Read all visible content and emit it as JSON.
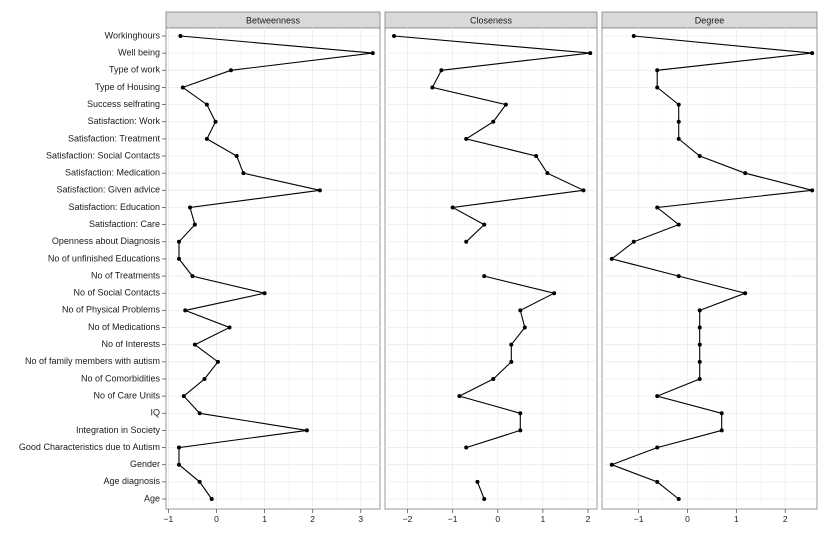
{
  "chart_data": {
    "type": "line",
    "orientation": "horizontal",
    "grid": true,
    "categories": [
      "Workinghours",
      "Well being",
      "Type of work",
      "Type of Housing",
      "Success selfrating",
      "Satisfaction: Work",
      "Satisfaction: Treatment",
      "Satisfaction: Social Contacts",
      "Satisfaction: Medication",
      "Satisfaction: Given advice",
      "Satisfaction: Education",
      "Satisfaction: Care",
      "Openness about Diagnosis",
      "No of unfinished Educations",
      "No of Treatments",
      "No of Social Contacts",
      "No of Physical Problems",
      "No of Medications",
      "No of Interests",
      "No of family members with autism",
      "No of Comorbidities",
      "No of Care Units",
      "IQ",
      "Integration in Society",
      "Good Characteristics due to Autism",
      "Gender",
      "Age diagnosis",
      "Age"
    ],
    "panels": [
      {
        "title": "Betweenness",
        "xlim": [
          -1.05,
          3.4
        ],
        "xticks": [
          -1,
          0,
          1,
          2,
          3
        ],
        "values": [
          -0.75,
          3.25,
          0.3,
          -0.7,
          -0.2,
          -0.02,
          -0.2,
          0.42,
          0.56,
          2.15,
          -0.55,
          -0.45,
          -0.78,
          -0.78,
          -0.5,
          1.0,
          -0.65,
          0.27,
          -0.45,
          0.03,
          -0.25,
          -0.68,
          -0.35,
          1.88,
          -0.78,
          -0.78,
          -0.35,
          -0.1
        ]
      },
      {
        "title": "Closeness",
        "xlim": [
          -2.5,
          2.2
        ],
        "xticks": [
          -2,
          -1,
          0,
          1,
          2
        ],
        "values": [
          -2.3,
          2.05,
          -1.25,
          -1.45,
          0.18,
          -0.1,
          -0.7,
          0.85,
          1.1,
          1.9,
          -1.0,
          -0.3,
          -0.7,
          null,
          -0.3,
          1.25,
          0.5,
          0.6,
          0.3,
          0.3,
          -0.1,
          -0.85,
          0.5,
          0.5,
          -0.7,
          null,
          -0.45,
          -0.3
        ]
      },
      {
        "title": "Degree",
        "xlim": [
          -1.75,
          2.65
        ],
        "xticks": [
          -1,
          0,
          1,
          2
        ],
        "values": [
          -1.1,
          2.55,
          -0.62,
          -0.62,
          -0.18,
          -0.18,
          -0.18,
          0.25,
          1.18,
          2.55,
          -0.62,
          -0.18,
          -1.1,
          -1.55,
          -0.18,
          1.18,
          0.25,
          0.25,
          0.25,
          0.25,
          0.25,
          -0.62,
          0.7,
          0.7,
          -0.62,
          -1.55,
          -0.62,
          -0.18
        ]
      }
    ]
  }
}
